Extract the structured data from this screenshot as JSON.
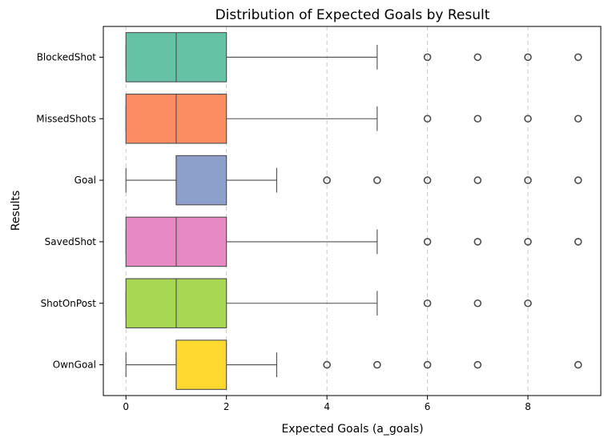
{
  "chart_data": {
    "type": "boxplot",
    "orientation": "horizontal",
    "title": "Distribution of Expected Goals by Result",
    "xlabel": "Expected Goals (a_goals)",
    "ylabel": "Results",
    "xlim": [
      -0.45,
      9.45
    ],
    "xticks": [
      0,
      2,
      4,
      6,
      8
    ],
    "grid": {
      "x": true,
      "y": false,
      "style": "dashed"
    },
    "categories": [
      "BlockedShot",
      "MissedShots",
      "Goal",
      "SavedShot",
      "ShotOnPost",
      "OwnGoal"
    ],
    "colors": [
      "#66c2a5",
      "#fc8d62",
      "#8da0cb",
      "#e78ac3",
      "#a6d854",
      "#ffd92f"
    ],
    "series": [
      {
        "category": "BlockedShot",
        "whisker_low": 0,
        "q1": 0,
        "median": 1,
        "q3": 2,
        "whisker_high": 5,
        "outliers": [
          6,
          7,
          8,
          9
        ]
      },
      {
        "category": "MissedShots",
        "whisker_low": 0,
        "q1": 0,
        "median": 1,
        "q3": 2,
        "whisker_high": 5,
        "outliers": [
          6,
          7,
          8,
          9
        ]
      },
      {
        "category": "Goal",
        "whisker_low": 0,
        "q1": 1,
        "median": 1,
        "q3": 2,
        "whisker_high": 3,
        "outliers": [
          4,
          5,
          6,
          7,
          8,
          9
        ]
      },
      {
        "category": "SavedShot",
        "whisker_low": 0,
        "q1": 0,
        "median": 1,
        "q3": 2,
        "whisker_high": 5,
        "outliers": [
          6,
          7,
          8,
          9
        ]
      },
      {
        "category": "ShotOnPost",
        "whisker_low": 0,
        "q1": 0,
        "median": 1,
        "q3": 2,
        "whisker_high": 5,
        "outliers": [
          6,
          7,
          8
        ]
      },
      {
        "category": "OwnGoal",
        "whisker_low": 0,
        "q1": 1,
        "median": 1,
        "q3": 2,
        "whisker_high": 3,
        "outliers": [
          4,
          5,
          6,
          7,
          9
        ]
      }
    ]
  }
}
